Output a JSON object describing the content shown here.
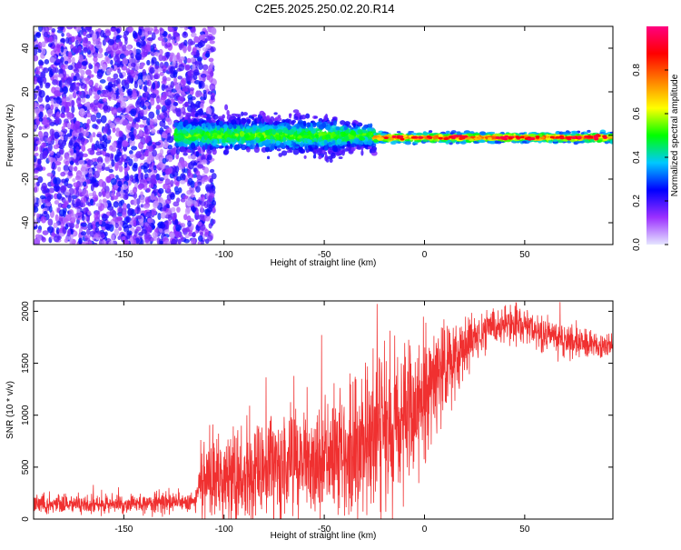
{
  "title": "C2E5.2025.250.02.20.R14",
  "colors": {
    "snr_line": "#f03030",
    "background": "#ffffff",
    "axis": "#000000",
    "colormap": [
      "#e5e5ff",
      "#9b30ff",
      "#0000ff",
      "#00c8ff",
      "#00ff00",
      "#ffff00",
      "#ff8000",
      "#ff0000",
      "#ff0080"
    ]
  },
  "chart_data": [
    {
      "type": "heatmap",
      "name": "spectrogram",
      "xlabel": "Height of straight line (km)",
      "ylabel": "Frequency (Hz)",
      "xlim": [
        -195,
        94
      ],
      "ylim": [
        -50,
        50
      ],
      "xticks": [
        -150,
        -100,
        -50,
        0,
        50
      ],
      "yticks": [
        -40,
        -20,
        0,
        20,
        40
      ],
      "xtick_labels": [
        "-150",
        "-100",
        "-50",
        "0",
        "50"
      ],
      "ytick_labels": [
        "-40",
        "-20",
        "0",
        "20",
        "40"
      ],
      "regions": [
        {
          "x_range": [
            -195,
            -113
          ],
          "description_value": "noise",
          "freq_range": [
            -50,
            50
          ],
          "amplitude": 0.15
        },
        {
          "x_range": [
            -124,
            -25
          ],
          "freq_center": 0,
          "freq_halfwidth": 7,
          "amplitude": 0.35
        },
        {
          "x_range": [
            -25,
            94
          ],
          "freq_center": -1,
          "freq_halfwidth": 2,
          "amplitude": 0.8
        }
      ],
      "colorbar": {
        "label": "Normalized spectral amplitude",
        "range": [
          0,
          1
        ],
        "ticks": [
          0,
          0.2,
          0.4,
          0.6,
          0.8
        ],
        "tick_labels": [
          "0.0",
          "0.2",
          "0.4",
          "0.6",
          "0.8"
        ]
      }
    },
    {
      "type": "line",
      "name": "snr",
      "xlabel": "Height of straight line (km)",
      "ylabel": "SNR (10 * v/v)",
      "xlim": [
        -195,
        94
      ],
      "ylim": [
        0,
        2100
      ],
      "xticks": [
        -150,
        -100,
        -50,
        0,
        50
      ],
      "yticks": [
        0,
        500,
        1000,
        1500,
        2000
      ],
      "xtick_labels": [
        "-150",
        "-100",
        "-50",
        "0",
        "50"
      ],
      "ytick_labels": [
        "0",
        "500",
        "1000",
        "1500",
        "2000"
      ],
      "trend": {
        "x": [
          -195,
          -150,
          -115,
          -112,
          -100,
          -80,
          -60,
          -40,
          -30,
          -25,
          -20,
          -10,
          0,
          10,
          20,
          30,
          40,
          50,
          60,
          70,
          80,
          94
        ],
        "y": [
          150,
          140,
          170,
          280,
          360,
          460,
          520,
          600,
          700,
          780,
          850,
          980,
          1150,
          1450,
          1650,
          1800,
          1870,
          1850,
          1780,
          1720,
          1680,
          1660
        ]
      },
      "noise_amplitude": {
        "x": [
          -195,
          -113,
          -112,
          -40,
          -25,
          0,
          10,
          30,
          94
        ],
        "y": [
          90,
          110,
          450,
          650,
          900,
          700,
          500,
          200,
          140
        ]
      }
    }
  ]
}
